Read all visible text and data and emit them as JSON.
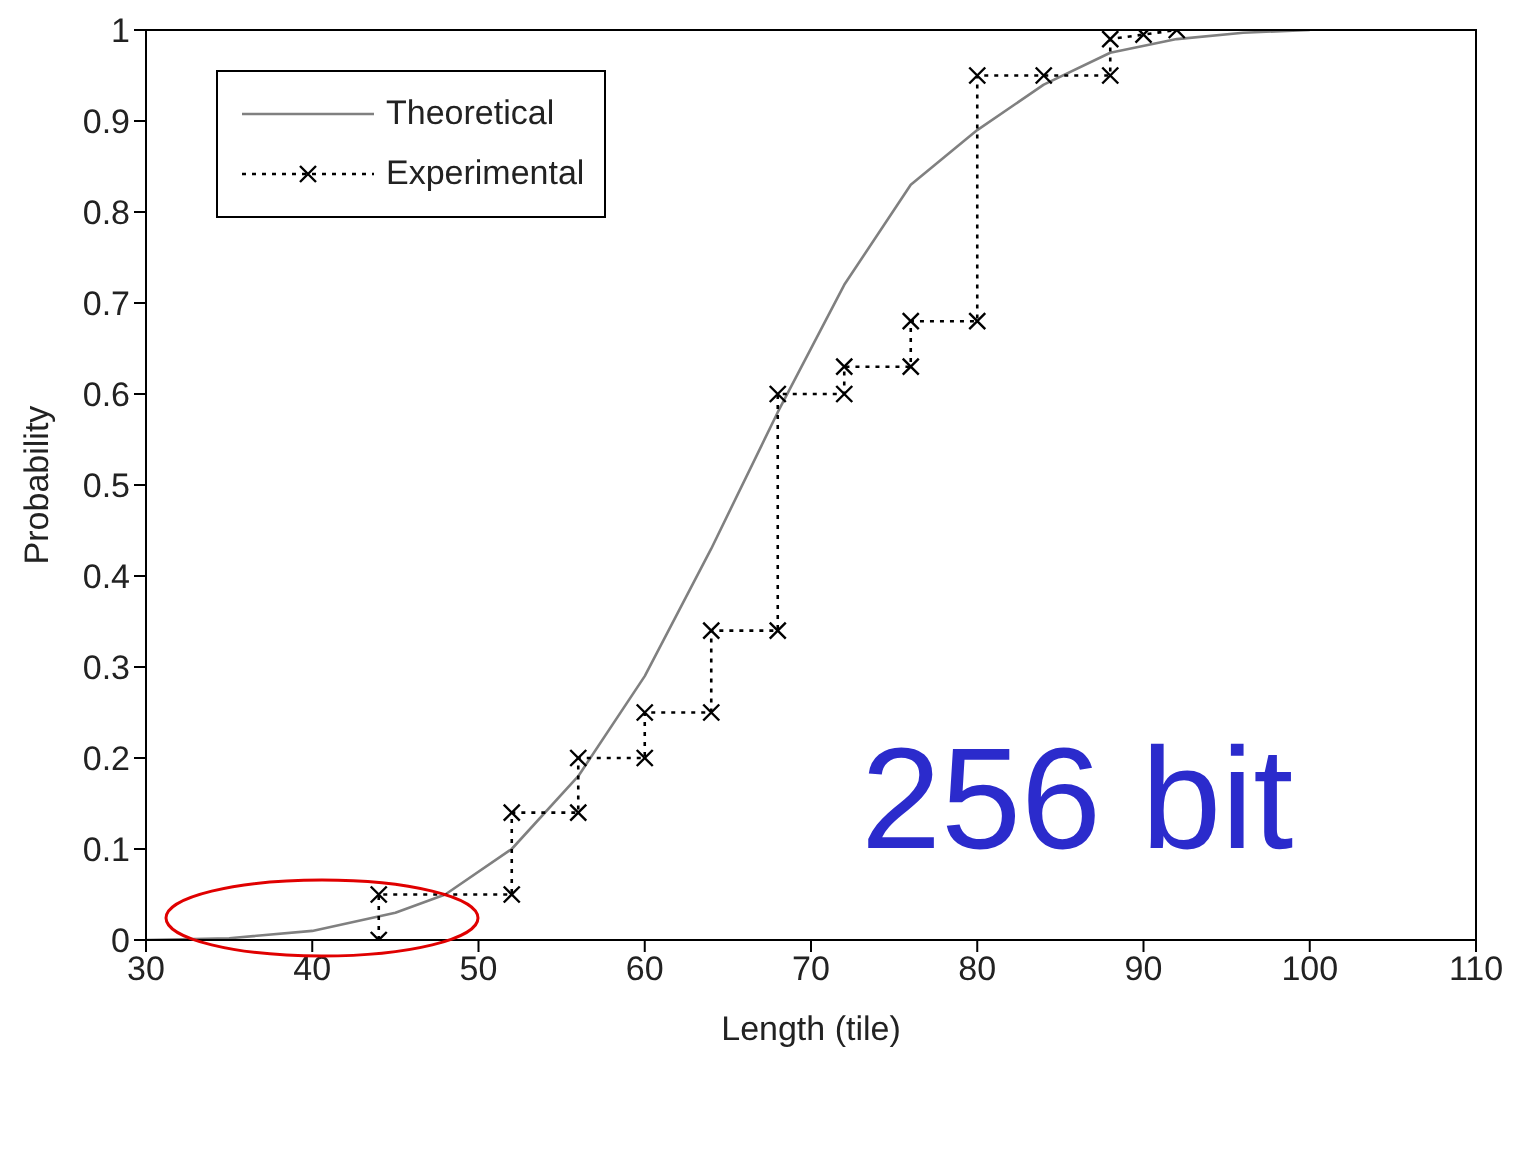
{
  "chart_data": {
    "type": "line",
    "xlabel": "Length (tile)",
    "ylabel": "Probability",
    "xlim": [
      30,
      110
    ],
    "xticks": [
      30,
      40,
      50,
      60,
      70,
      80,
      90,
      100,
      110
    ],
    "ylim": [
      0,
      1
    ],
    "yticks": [
      0,
      0.1,
      0.2,
      0.3,
      0.4,
      0.5,
      0.6,
      0.7,
      0.8,
      0.9,
      1
    ],
    "legend": "top left",
    "series": [
      {
        "name": "Theoretical",
        "color": "#808080",
        "line_style": "solid",
        "marker": "none",
        "x": [
          30,
          35,
          40,
          45,
          48,
          52,
          56,
          60,
          64,
          68,
          72,
          76,
          80,
          84,
          88,
          92,
          96,
          100
        ],
        "values": [
          0,
          0.002,
          0.01,
          0.03,
          0.05,
          0.1,
          0.18,
          0.29,
          0.43,
          0.58,
          0.72,
          0.83,
          0.89,
          0.94,
          0.975,
          0.99,
          0.997,
          1
        ]
      },
      {
        "name": "Experimental",
        "color": "#000000",
        "line_style": "dotted",
        "marker": "cross",
        "x": [
          44,
          44,
          52,
          52,
          56,
          56,
          60,
          60,
          64,
          64,
          68,
          68,
          72,
          72,
          76,
          76,
          80,
          80,
          84,
          88,
          88,
          90,
          92
        ],
        "values": [
          0,
          0.05,
          0.05,
          0.14,
          0.14,
          0.2,
          0.2,
          0.25,
          0.25,
          0.34,
          0.34,
          0.6,
          0.6,
          0.63,
          0.63,
          0.68,
          0.68,
          0.95,
          0.95,
          0.95,
          0.99,
          0.995,
          1
        ]
      }
    ],
    "annotations": [
      "256 bit"
    ]
  }
}
